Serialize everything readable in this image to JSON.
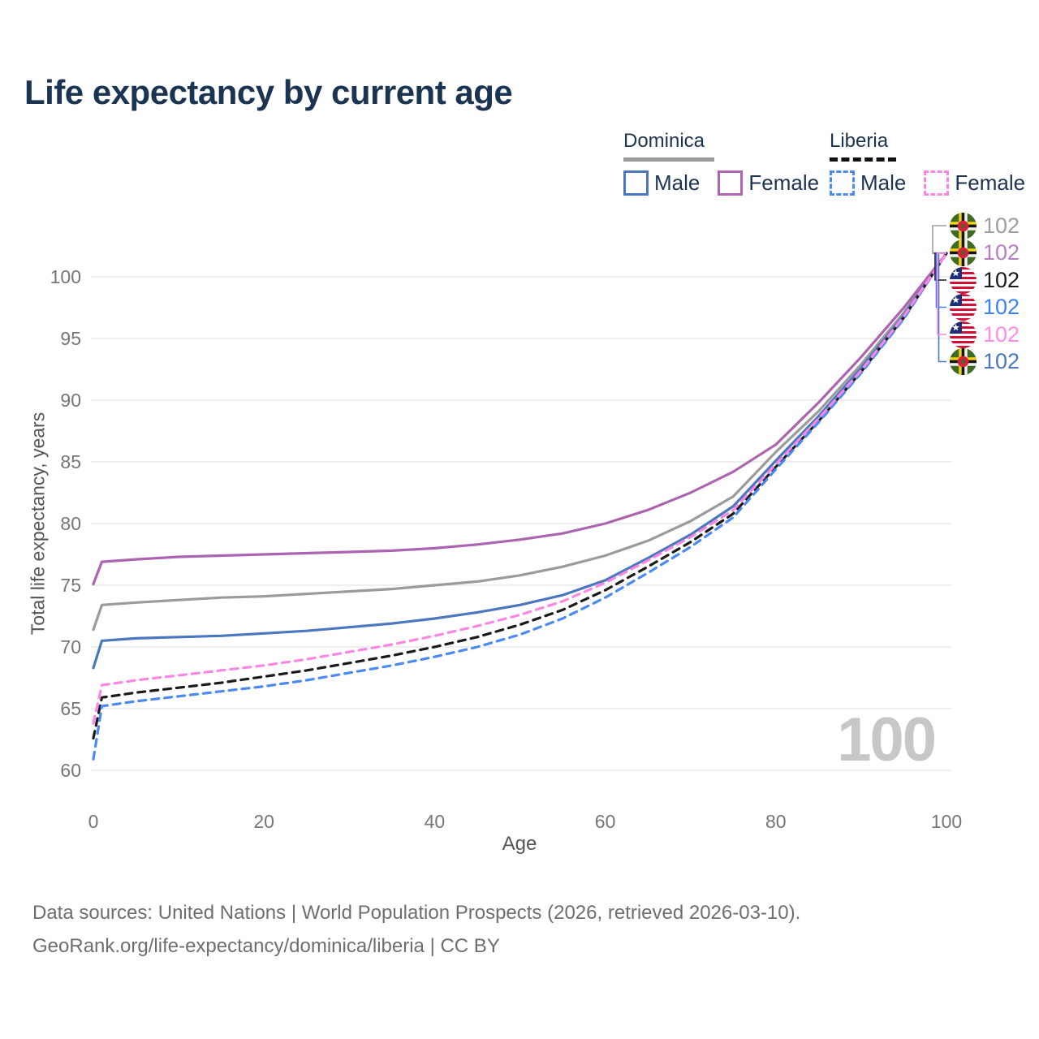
{
  "title": "Life expectancy by current age",
  "legend": {
    "groups": [
      {
        "name": "Dominica",
        "line_style": "solid",
        "line_color": "#999999",
        "items": [
          {
            "label": "Male",
            "color": "#4a77be",
            "dashed": false
          },
          {
            "label": "Female",
            "color": "#b164b4",
            "dashed": false
          }
        ]
      },
      {
        "name": "Liberia",
        "line_style": "dashed",
        "line_color": "#111111",
        "items": [
          {
            "label": "Male",
            "color": "#4a8af2",
            "dashed": true
          },
          {
            "label": "Female",
            "color": "#fb87e4",
            "dashed": true
          }
        ]
      }
    ]
  },
  "chart_data": {
    "type": "line",
    "title": "Life expectancy by current age",
    "xlabel": "Age",
    "ylabel": "Total life expectancy, years",
    "xlim": [
      0,
      100
    ],
    "ylim": [
      58.5,
      103
    ],
    "x_ticks": [
      0,
      20,
      40,
      60,
      80,
      100
    ],
    "y_ticks": [
      60,
      65,
      70,
      75,
      80,
      85,
      90,
      95,
      100
    ],
    "grid": "horizontal",
    "watermark": "100",
    "x": [
      0,
      1,
      3,
      5,
      10,
      15,
      20,
      25,
      30,
      35,
      40,
      45,
      50,
      55,
      60,
      65,
      70,
      75,
      80,
      85,
      90,
      95,
      100
    ],
    "series": [
      {
        "id": "dominica-total",
        "name": "Dominica",
        "country": "Dominica",
        "sex": "Both",
        "color": "#9b9b9b",
        "dash": false,
        "end_label": "102",
        "label_slot": 0,
        "label_color": "#9e9e9e",
        "values": [
          71.4,
          73.4,
          73.5,
          73.6,
          73.8,
          74.0,
          74.1,
          74.3,
          74.5,
          74.7,
          75.0,
          75.3,
          75.8,
          76.5,
          77.4,
          78.6,
          80.2,
          82.2,
          85.8,
          89.1,
          92.9,
          97.1,
          101.9
        ]
      },
      {
        "id": "dominica-male",
        "name": "Dominica Male",
        "country": "Dominica",
        "sex": "Male",
        "color": "#4a77be",
        "dash": false,
        "end_label": "102",
        "label_slot": 5,
        "label_color": "#4a77be",
        "values": [
          68.3,
          70.5,
          70.6,
          70.7,
          70.8,
          70.9,
          71.1,
          71.3,
          71.6,
          71.9,
          72.3,
          72.8,
          73.4,
          74.2,
          75.4,
          77.2,
          79.1,
          81.4,
          85.1,
          88.7,
          92.6,
          96.9,
          101.9
        ]
      },
      {
        "id": "dominica-female",
        "name": "Dominica Female",
        "country": "Dominica",
        "sex": "Female",
        "color": "#ad64b0",
        "dash": false,
        "end_label": "102",
        "label_slot": 1,
        "label_color": "#b57fc0",
        "values": [
          75.1,
          76.9,
          77.0,
          77.1,
          77.3,
          77.4,
          77.5,
          77.6,
          77.7,
          77.8,
          78.0,
          78.3,
          78.7,
          79.2,
          80.0,
          81.1,
          82.5,
          84.2,
          86.4,
          89.8,
          93.5,
          97.5,
          101.9
        ]
      },
      {
        "id": "liberia-total",
        "name": "Liberia",
        "country": "Liberia",
        "sex": "Both",
        "color": "#1a1a1a",
        "dash": true,
        "end_label": "102",
        "label_slot": 2,
        "label_color": "#1a1a1a",
        "values": [
          62.6,
          65.9,
          66.1,
          66.3,
          66.7,
          67.1,
          67.6,
          68.1,
          68.7,
          69.3,
          70.0,
          70.8,
          71.8,
          73.0,
          74.6,
          76.5,
          78.5,
          80.8,
          84.6,
          88.3,
          92.3,
          96.7,
          101.9
        ]
      },
      {
        "id": "liberia-male",
        "name": "Liberia Male",
        "country": "Liberia",
        "sex": "Male",
        "color": "#4a8af2",
        "dash": true,
        "end_label": "102",
        "label_slot": 3,
        "label_color": "#3d82f2",
        "values": [
          60.9,
          65.2,
          65.4,
          65.6,
          66.0,
          66.4,
          66.8,
          67.3,
          67.9,
          68.5,
          69.2,
          70.0,
          71.0,
          72.3,
          74.0,
          76.0,
          78.1,
          80.5,
          84.4,
          88.2,
          92.2,
          96.6,
          101.9
        ]
      },
      {
        "id": "liberia-female",
        "name": "Liberia Female",
        "country": "Liberia",
        "sex": "Female",
        "color": "#fb87e4",
        "dash": true,
        "end_label": "102",
        "label_slot": 4,
        "label_color": "#ff8ce8",
        "values": [
          63.8,
          66.9,
          67.1,
          67.3,
          67.7,
          68.1,
          68.5,
          69.0,
          69.6,
          70.2,
          70.9,
          71.7,
          72.6,
          73.7,
          75.2,
          77.0,
          78.9,
          81.1,
          84.8,
          88.5,
          92.4,
          96.8,
          101.9
        ]
      }
    ]
  },
  "footer": {
    "line1": "Data sources: United Nations | World Population Prospects (2026, retrieved 2026-03-10).",
    "line2": "GeoRank.org/life-expectancy/dominica/liberia | CC BY"
  }
}
